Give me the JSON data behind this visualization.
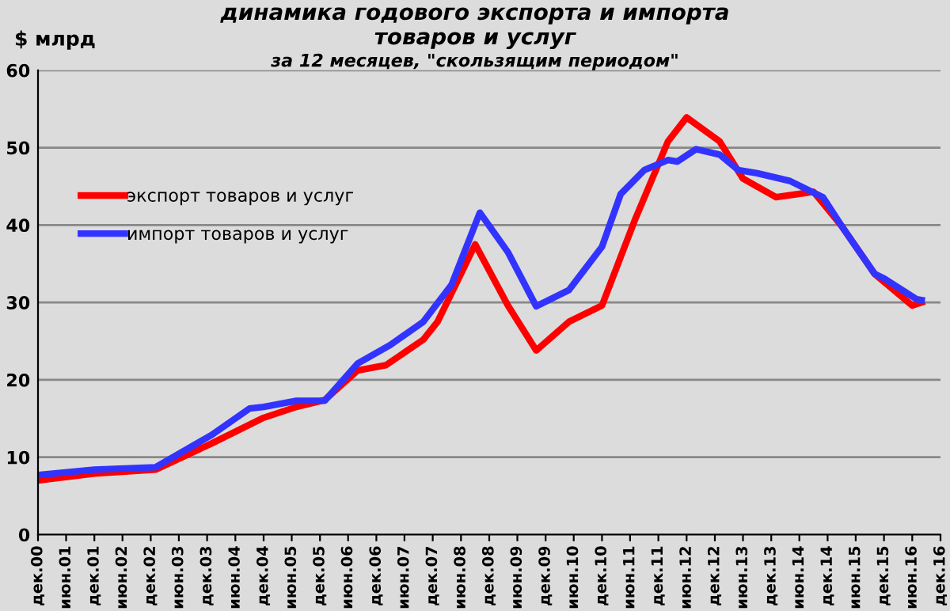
{
  "chart_data": {
    "type": "line",
    "title": "динамика годового экспорта и импорта\nтоваров и услуг",
    "subtitle": "за 12 месяцев, \"скользящим периодом\"",
    "ylabel": "$ млрд",
    "xlim": [
      "2000-12",
      "2016-12"
    ],
    "xticks": [
      {
        "value": "2000-12",
        "label": "дек.00"
      },
      {
        "value": "2001-06",
        "label": "июн.01"
      },
      {
        "value": "2001-12",
        "label": "дек.01"
      },
      {
        "value": "2002-06",
        "label": "июн.02"
      },
      {
        "value": "2002-12",
        "label": "дек.02"
      },
      {
        "value": "2003-06",
        "label": "июн.03"
      },
      {
        "value": "2003-12",
        "label": "дек.03"
      },
      {
        "value": "2004-06",
        "label": "июн.04"
      },
      {
        "value": "2004-12",
        "label": "дек.04"
      },
      {
        "value": "2005-06",
        "label": "июн.05"
      },
      {
        "value": "2005-12",
        "label": "дек.05"
      },
      {
        "value": "2006-06",
        "label": "июн.06"
      },
      {
        "value": "2006-12",
        "label": "дек.06"
      },
      {
        "value": "2007-06",
        "label": "июн.07"
      },
      {
        "value": "2007-12",
        "label": "дек.07"
      },
      {
        "value": "2008-06",
        "label": "июн.08"
      },
      {
        "value": "2008-12",
        "label": "дек.08"
      },
      {
        "value": "2009-06",
        "label": "июн.09"
      },
      {
        "value": "2009-12",
        "label": "дек.09"
      },
      {
        "value": "2010-06",
        "label": "июн.10"
      },
      {
        "value": "2010-12",
        "label": "дек.10"
      },
      {
        "value": "2011-06",
        "label": "июн.11"
      },
      {
        "value": "2011-12",
        "label": "дек.11"
      },
      {
        "value": "2012-06",
        "label": "июн.12"
      },
      {
        "value": "2012-12",
        "label": "дек.12"
      },
      {
        "value": "2013-06",
        "label": "июн.13"
      },
      {
        "value": "2013-12",
        "label": "дек.13"
      },
      {
        "value": "2014-06",
        "label": "июн.14"
      },
      {
        "value": "2014-12",
        "label": "дек.14"
      },
      {
        "value": "2015-06",
        "label": "июн.15"
      },
      {
        "value": "2015-12",
        "label": "дек.15"
      },
      {
        "value": "2016-06",
        "label": "июн.16"
      },
      {
        "value": "2016-12",
        "label": "дек.16"
      }
    ],
    "ylim": [
      0,
      60
    ],
    "yticks": [
      0,
      10,
      20,
      30,
      40,
      50,
      60
    ],
    "grid": "y",
    "legend": "top left",
    "marker": "none",
    "line_style": "solid",
    "series": [
      {
        "name": "экспорт товаров и услуг",
        "color": "#ff0000",
        "x": [
          "2000-12",
          "2001-12",
          "2003-01",
          "2004-01",
          "2004-12",
          "2005-07",
          "2006-01",
          "2006-08",
          "2007-02",
          "2007-10",
          "2008-01",
          "2008-06",
          "2008-09",
          "2009-04",
          "2009-10",
          "2010-05",
          "2010-12",
          "2011-07",
          "2012-02",
          "2012-06",
          "2013-01",
          "2013-06",
          "2014-01",
          "2014-09",
          "2015-03",
          "2015-10",
          "2016-06",
          "2016-08"
        ],
        "values": [
          7.0,
          7.9,
          8.4,
          11.8,
          15.1,
          16.5,
          17.4,
          21.2,
          21.9,
          25.2,
          27.5,
          33.7,
          37.5,
          29.6,
          23.8,
          27.5,
          29.6,
          40.6,
          50.8,
          53.9,
          50.8,
          46.0,
          43.6,
          44.3,
          39.9,
          33.7,
          29.6,
          30.0
        ]
      },
      {
        "name": "импорт товаров и услуг",
        "color": "#3333ff",
        "x": [
          "2000-12",
          "2001-12",
          "2003-01",
          "2004-01",
          "2004-09",
          "2004-12",
          "2005-07",
          "2006-01",
          "2006-08",
          "2007-03",
          "2007-10",
          "2008-04",
          "2008-10",
          "2009-04",
          "2009-10",
          "2010-05",
          "2010-12",
          "2011-04",
          "2011-09",
          "2012-02",
          "2012-04",
          "2012-08",
          "2013-01",
          "2013-05",
          "2013-09",
          "2014-04",
          "2014-11",
          "2015-03",
          "2015-10",
          "2015-12",
          "2016-07",
          "2016-08"
        ],
        "values": [
          7.7,
          8.4,
          8.7,
          12.9,
          16.3,
          16.5,
          17.3,
          17.3,
          22.1,
          24.5,
          27.5,
          32.3,
          41.6,
          36.5,
          29.5,
          31.6,
          37.2,
          44.0,
          47.1,
          48.4,
          48.2,
          49.8,
          49.1,
          47.1,
          46.7,
          45.7,
          43.6,
          39.9,
          33.7,
          33.1,
          30.4,
          30.3
        ]
      }
    ]
  }
}
